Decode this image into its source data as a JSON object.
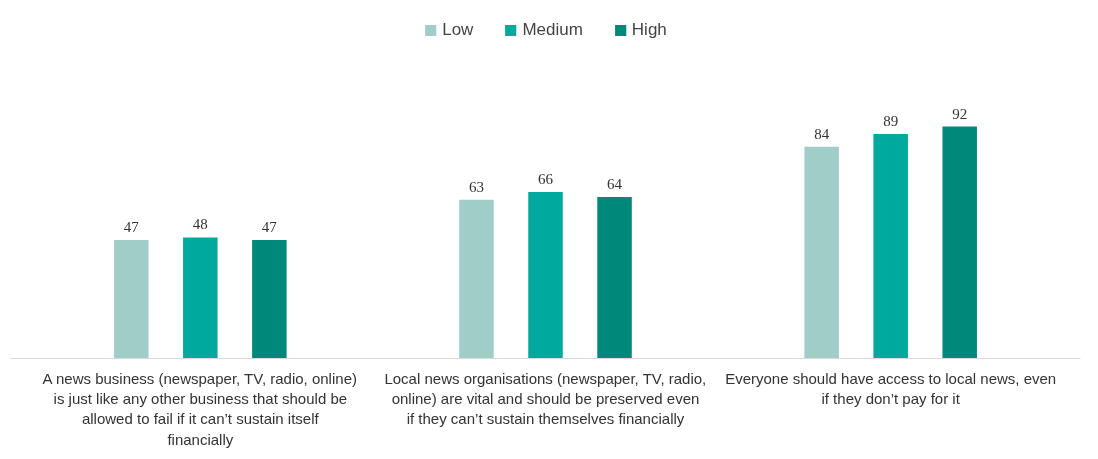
{
  "chart_data": {
    "type": "bar",
    "categories": [
      "A news business (newspaper, TV, radio, online) is just like any other business that should be allowed to fail if it can’t sustain itself financially",
      "Local news organisations (newspaper, TV, radio, online) are vital and should be preserved even if they can’t sustain themselves financially",
      "Everyone should have access to local news, even if they don’t pay for it"
    ],
    "series": [
      {
        "name": "Low",
        "color": "#a0cdc8",
        "values": [
          47,
          63,
          84
        ]
      },
      {
        "name": "Medium",
        "color": "#00a99d",
        "values": [
          48,
          66,
          89
        ]
      },
      {
        "name": "High",
        "color": "#00897b",
        "values": [
          47,
          64,
          92
        ]
      }
    ],
    "data_labels": true,
    "legend": "top",
    "grid": false,
    "tick_labels": "x"
  }
}
